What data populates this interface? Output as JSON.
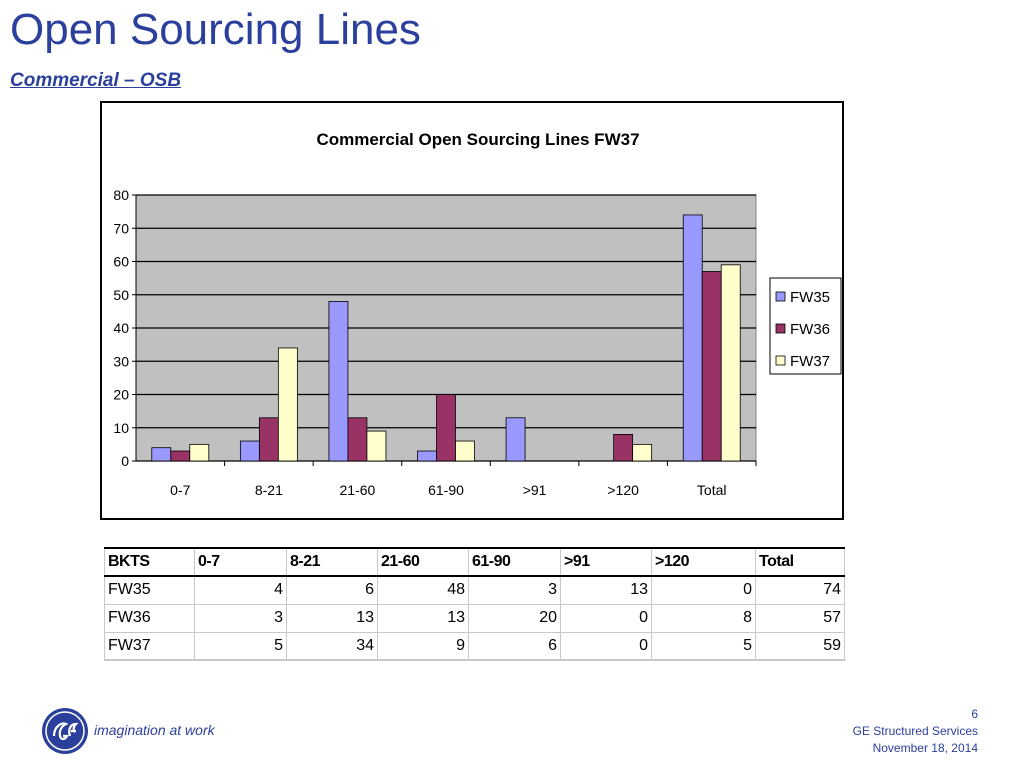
{
  "slide": {
    "title": "Open Sourcing Lines",
    "subtitle": "Commercial – OSB",
    "tagline": "imagination at work",
    "footer": {
      "page": "6",
      "company": "GE Structured Services",
      "date": "November 18, 2014"
    }
  },
  "chart_data": {
    "type": "bar",
    "title": "Commercial Open Sourcing Lines FW37",
    "categories": [
      "0-7",
      "8-21",
      "21-60",
      "61-90",
      ">91",
      ">120",
      "Total"
    ],
    "series": [
      {
        "name": "FW35",
        "values": [
          4,
          6,
          48,
          3,
          13,
          0,
          74
        ],
        "color": "#9999ff"
      },
      {
        "name": "FW36",
        "values": [
          3,
          13,
          13,
          20,
          0,
          8,
          57
        ],
        "color": "#993366"
      },
      {
        "name": "FW37",
        "values": [
          5,
          34,
          9,
          6,
          0,
          5,
          59
        ],
        "color": "#ffffcc"
      }
    ],
    "ylim": [
      0,
      80
    ],
    "yticks": [
      "0",
      "10",
      "20",
      "30",
      "40",
      "50",
      "60",
      "70",
      "80"
    ],
    "grid": true,
    "plot_bg": "#c0c0c0",
    "legend_position": "right"
  },
  "table": {
    "headers": [
      "BKTS",
      "0-7",
      "8-21",
      "21-60",
      "61-90",
      ">91",
      ">120",
      "Total"
    ],
    "rows": [
      [
        "FW35",
        "4",
        "6",
        "48",
        "3",
        "13",
        "0",
        "74"
      ],
      [
        "FW36",
        "3",
        "13",
        "13",
        "20",
        "0",
        "8",
        "57"
      ],
      [
        "FW37",
        "5",
        "34",
        "9",
        "6",
        "0",
        "5",
        "59"
      ]
    ]
  }
}
